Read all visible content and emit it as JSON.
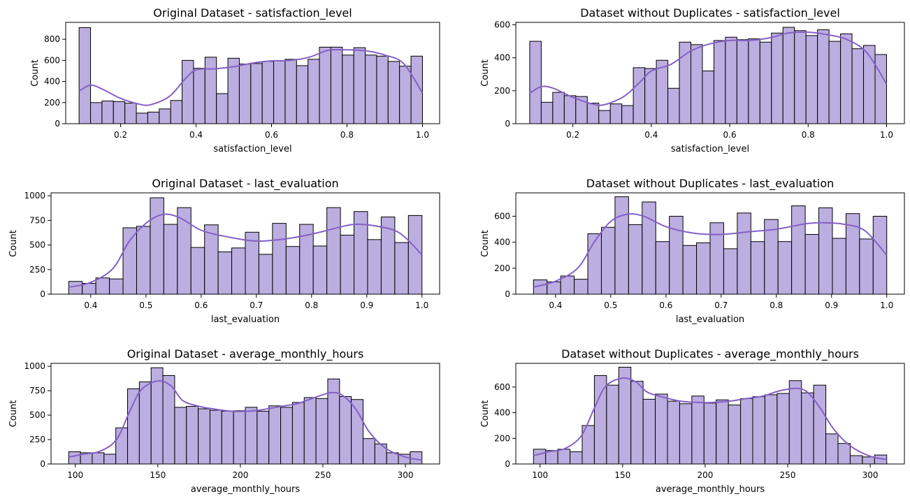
{
  "chart_data": [
    {
      "type": "histogram",
      "title": "Original Dataset - satisfaction_level",
      "xlabel": "satisfaction_level",
      "ylabel": "Count",
      "xlim": [
        0.0545,
        1.0455
      ],
      "ylim": [
        0,
        960
      ],
      "xticks": [
        0.2,
        0.4,
        0.6,
        0.8
      ],
      "xtick_labels": [
        "0.2",
        "0.4",
        "0.6",
        "0.8"
      ],
      "xticks_extra": [
        1.0
      ],
      "xticks_extra_labels": [
        "1.0"
      ],
      "yticks": [
        0,
        200,
        400,
        600,
        800
      ],
      "yticks_labels": [
        "0",
        "200",
        "400",
        "600",
        "800"
      ],
      "bin_start": 0.09,
      "bin_end": 1.0,
      "values": [
        910,
        200,
        215,
        210,
        195,
        100,
        110,
        140,
        220,
        600,
        525,
        630,
        285,
        620,
        565,
        570,
        590,
        595,
        610,
        550,
        610,
        725,
        725,
        650,
        720,
        650,
        640,
        590,
        545,
        640
      ],
      "kde": [
        [
          0.09,
          310
        ],
        [
          0.12,
          365
        ],
        [
          0.15,
          330
        ],
        [
          0.2,
          240
        ],
        [
          0.25,
          185
        ],
        [
          0.28,
          180
        ],
        [
          0.33,
          260
        ],
        [
          0.37,
          420
        ],
        [
          0.4,
          510
        ],
        [
          0.45,
          520
        ],
        [
          0.5,
          540
        ],
        [
          0.55,
          575
        ],
        [
          0.6,
          595
        ],
        [
          0.65,
          600
        ],
        [
          0.7,
          630
        ],
        [
          0.75,
          695
        ],
        [
          0.8,
          700
        ],
        [
          0.85,
          690
        ],
        [
          0.9,
          650
        ],
        [
          0.95,
          570
        ],
        [
          1.0,
          290
        ]
      ]
    },
    {
      "type": "histogram",
      "title": "Dataset without Duplicates - satisfaction_level",
      "xlabel": "satisfaction_level",
      "ylabel": "Count",
      "xlim": [
        0.0545,
        1.0455
      ],
      "ylim": [
        0,
        615
      ],
      "xticks": [
        0.2,
        0.4,
        0.6,
        0.8,
        1.0
      ],
      "xtick_labels": [
        "0.2",
        "0.4",
        "0.6",
        "0.8",
        "1.0"
      ],
      "yticks": [
        0,
        200,
        400,
        600
      ],
      "yticks_labels": [
        "0",
        "200",
        "400",
        "600"
      ],
      "bin_start": 0.09,
      "bin_end": 1.0,
      "values": [
        500,
        130,
        190,
        170,
        165,
        125,
        80,
        120,
        110,
        340,
        335,
        385,
        215,
        495,
        480,
        320,
        505,
        525,
        510,
        515,
        495,
        550,
        585,
        565,
        535,
        570,
        500,
        545,
        455,
        475,
        420
      ],
      "kde": [
        [
          0.09,
          185
        ],
        [
          0.12,
          225
        ],
        [
          0.15,
          215
        ],
        [
          0.2,
          160
        ],
        [
          0.25,
          120
        ],
        [
          0.28,
          115
        ],
        [
          0.33,
          165
        ],
        [
          0.37,
          250
        ],
        [
          0.4,
          320
        ],
        [
          0.45,
          360
        ],
        [
          0.5,
          440
        ],
        [
          0.55,
          485
        ],
        [
          0.6,
          505
        ],
        [
          0.65,
          505
        ],
        [
          0.7,
          520
        ],
        [
          0.75,
          550
        ],
        [
          0.8,
          555
        ],
        [
          0.85,
          540
        ],
        [
          0.9,
          510
        ],
        [
          0.95,
          430
        ],
        [
          1.0,
          240
        ]
      ]
    },
    {
      "type": "histogram",
      "title": "Original Dataset - last_evaluation",
      "xlabel": "last_evaluation",
      "ylabel": "Count",
      "xlim": [
        0.328,
        1.032
      ],
      "ylim": [
        0,
        1030
      ],
      "xticks": [
        0.4,
        0.5,
        0.6,
        0.7,
        0.8,
        0.9,
        1.0
      ],
      "xtick_labels": [
        "0.4",
        "0.5",
        "0.6",
        "0.7",
        "0.8",
        "0.9",
        "1.0"
      ],
      "yticks": [
        0,
        250,
        500,
        750,
        1000
      ],
      "yticks_labels": [
        "0",
        "250",
        "500",
        "750",
        "1000"
      ],
      "bin_start": 0.36,
      "bin_end": 1.0,
      "values": [
        130,
        110,
        165,
        155,
        675,
        690,
        980,
        710,
        880,
        475,
        705,
        430,
        470,
        630,
        405,
        720,
        485,
        710,
        490,
        880,
        600,
        840,
        555,
        785,
        525,
        800
      ],
      "kde": [
        [
          0.36,
          70
        ],
        [
          0.4,
          120
        ],
        [
          0.44,
          260
        ],
        [
          0.47,
          540
        ],
        [
          0.5,
          720
        ],
        [
          0.53,
          810
        ],
        [
          0.56,
          780
        ],
        [
          0.6,
          650
        ],
        [
          0.65,
          580
        ],
        [
          0.7,
          540
        ],
        [
          0.75,
          560
        ],
        [
          0.8,
          610
        ],
        [
          0.85,
          680
        ],
        [
          0.88,
          710
        ],
        [
          0.92,
          690
        ],
        [
          0.96,
          620
        ],
        [
          1.0,
          400
        ]
      ]
    },
    {
      "type": "histogram",
      "title": "Dataset without Duplicates - last_evaluation",
      "xlabel": "last_evaluation",
      "ylabel": "Count",
      "xlim": [
        0.328,
        1.032
      ],
      "ylim": [
        0,
        780
      ],
      "xticks": [
        0.4,
        0.5,
        0.6,
        0.7,
        0.8,
        0.9,
        1.0
      ],
      "xtick_labels": [
        "0.4",
        "0.5",
        "0.6",
        "0.7",
        "0.8",
        "0.9",
        "1.0"
      ],
      "yticks": [
        0,
        200,
        400,
        600
      ],
      "yticks_labels": [
        "0",
        "200",
        "400",
        "600"
      ],
      "bin_start": 0.36,
      "bin_end": 1.0,
      "values": [
        110,
        95,
        140,
        115,
        465,
        515,
        750,
        535,
        710,
        405,
        600,
        375,
        395,
        550,
        350,
        625,
        405,
        575,
        405,
        680,
        460,
        665,
        430,
        620,
        425,
        600
      ],
      "kde": [
        [
          0.36,
          55
        ],
        [
          0.4,
          100
        ],
        [
          0.44,
          200
        ],
        [
          0.47,
          400
        ],
        [
          0.5,
          560
        ],
        [
          0.53,
          615
        ],
        [
          0.56,
          600
        ],
        [
          0.6,
          520
        ],
        [
          0.65,
          470
        ],
        [
          0.7,
          460
        ],
        [
          0.75,
          480
        ],
        [
          0.8,
          500
        ],
        [
          0.85,
          540
        ],
        [
          0.88,
          550
        ],
        [
          0.92,
          540
        ],
        [
          0.96,
          490
        ],
        [
          1.0,
          300
        ]
      ]
    },
    {
      "type": "histogram",
      "title": "Original Dataset - average_monthly_hours",
      "xlabel": "average_monthly_hours",
      "ylabel": "Count",
      "xlim": [
        85.3,
        320.7
      ],
      "ylim": [
        0,
        1030
      ],
      "xticks": [
        100,
        150,
        200,
        250,
        300
      ],
      "xtick_labels": [
        "100",
        "150",
        "200",
        "250",
        "300"
      ],
      "yticks": [
        0,
        250,
        500,
        750,
        1000
      ],
      "yticks_labels": [
        "0",
        "250",
        "500",
        "750",
        "1000"
      ],
      "bin_start": 96,
      "bin_end": 310,
      "values": [
        125,
        115,
        115,
        100,
        370,
        770,
        840,
        985,
        905,
        580,
        590,
        565,
        550,
        540,
        545,
        580,
        540,
        595,
        580,
        630,
        680,
        670,
        870,
        690,
        660,
        260,
        205,
        115,
        100,
        125
      ],
      "kde": [
        [
          96,
          70
        ],
        [
          105,
          100
        ],
        [
          115,
          130
        ],
        [
          125,
          250
        ],
        [
          133,
          540
        ],
        [
          140,
          760
        ],
        [
          150,
          850
        ],
        [
          158,
          800
        ],
        [
          165,
          650
        ],
        [
          175,
          590
        ],
        [
          185,
          560
        ],
        [
          195,
          540
        ],
        [
          205,
          540
        ],
        [
          215,
          560
        ],
        [
          225,
          590
        ],
        [
          235,
          620
        ],
        [
          245,
          680
        ],
        [
          255,
          730
        ],
        [
          262,
          700
        ],
        [
          270,
          560
        ],
        [
          278,
          330
        ],
        [
          288,
          160
        ],
        [
          300,
          70
        ],
        [
          310,
          40
        ]
      ]
    },
    {
      "type": "histogram",
      "title": "Dataset without Duplicates - average_monthly_hours",
      "xlabel": "average_monthly_hours",
      "ylabel": "Count",
      "xlim": [
        85.3,
        320.7
      ],
      "ylim": [
        0,
        785
      ],
      "xticks": [
        100,
        150,
        200,
        250,
        300
      ],
      "xtick_labels": [
        "100",
        "150",
        "200",
        "250",
        "300"
      ],
      "yticks": [
        0,
        200,
        400,
        600
      ],
      "yticks_labels": [
        "0",
        "200",
        "400",
        "600"
      ],
      "bin_start": 96,
      "bin_end": 310,
      "values": [
        115,
        105,
        115,
        95,
        300,
        690,
        615,
        755,
        645,
        505,
        545,
        490,
        470,
        530,
        475,
        500,
        460,
        510,
        525,
        540,
        550,
        650,
        555,
        615,
        235,
        160,
        65,
        55,
        70
      ],
      "kde": [
        [
          96,
          65
        ],
        [
          105,
          95
        ],
        [
          115,
          120
        ],
        [
          125,
          220
        ],
        [
          133,
          440
        ],
        [
          140,
          610
        ],
        [
          150,
          670
        ],
        [
          158,
          640
        ],
        [
          165,
          560
        ],
        [
          175,
          520
        ],
        [
          185,
          490
        ],
        [
          195,
          480
        ],
        [
          205,
          480
        ],
        [
          215,
          490
        ],
        [
          225,
          510
        ],
        [
          235,
          530
        ],
        [
          245,
          570
        ],
        [
          255,
          590
        ],
        [
          262,
          560
        ],
        [
          270,
          430
        ],
        [
          278,
          270
        ],
        [
          288,
          140
        ],
        [
          300,
          60
        ],
        [
          310,
          35
        ]
      ]
    }
  ],
  "style": {
    "bar_fill": "#bcaee0",
    "bar_edge": "#000000",
    "kde_color": "#8560c6"
  }
}
